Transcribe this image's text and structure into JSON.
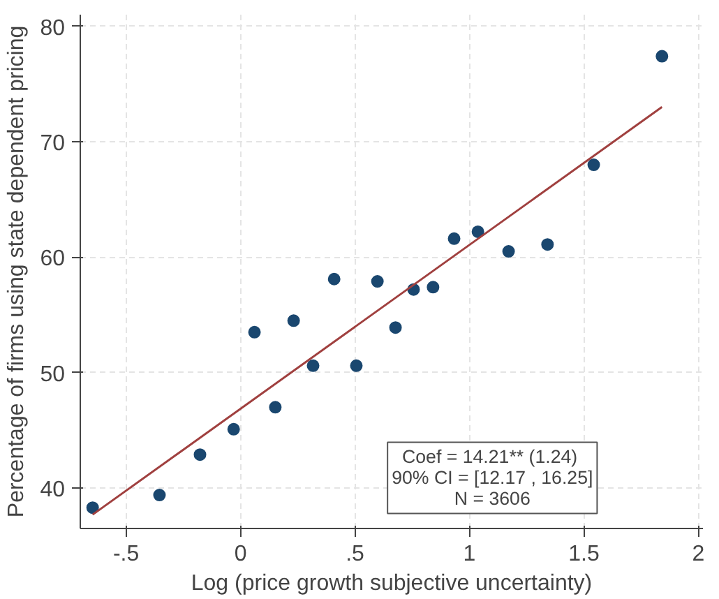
{
  "chart_data": {
    "type": "scatter",
    "xlabel": "Log (price growth subjective uncertainty)",
    "ylabel": "Percentage of firms using state dependent pricing",
    "xlim": [
      -0.7,
      2.02
    ],
    "ylim": [
      36.5,
      81
    ],
    "xticks": [
      {
        "value": -0.5,
        "label": "-.5"
      },
      0,
      {
        "value": 0.5,
        "label": ".5"
      },
      1,
      1.5,
      2
    ],
    "yticks": [
      40,
      50,
      60,
      70,
      80
    ],
    "grid": true,
    "series": [
      {
        "marker": "circle",
        "color": "#1a476f",
        "x": [
          -0.646,
          -0.354,
          -0.177,
          -0.03,
          0.061,
          0.152,
          0.232,
          0.317,
          0.409,
          0.506,
          0.598,
          0.677,
          0.756,
          0.841,
          0.933,
          1.037,
          1.171,
          1.341,
          1.543,
          1.841
        ],
        "values": [
          38.3,
          39.4,
          42.9,
          45.1,
          53.5,
          47.0,
          54.5,
          50.6,
          58.1,
          50.6,
          57.9,
          53.9,
          57.2,
          57.4,
          61.6,
          62.2,
          60.5,
          61.1,
          68.0,
          77.4
        ]
      },
      {
        "type": "line",
        "color": "#a0403f",
        "x": [
          -0.646,
          1.841
        ],
        "values": [
          37.7,
          73.0
        ]
      }
    ],
    "annotations": [
      "Coef = 14.21**  (1.24)\n90% CI = [12.17 , 16.25]\nN = 3606"
    ]
  }
}
